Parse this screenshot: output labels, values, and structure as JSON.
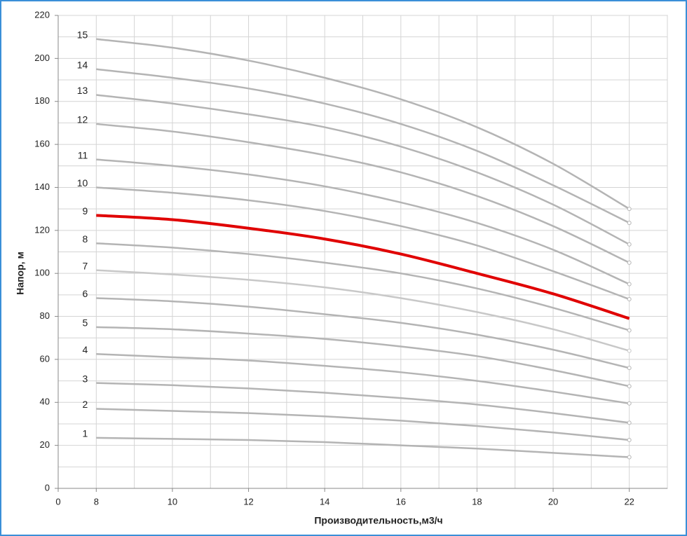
{
  "chart_data": {
    "type": "line",
    "x_label": "Производительность,м3/ч",
    "y_label": "Напор, м",
    "x": [
      8,
      10,
      12,
      14,
      16,
      18,
      20,
      22
    ],
    "xlim": [
      7,
      23
    ],
    "xticks": [
      {
        "value": 7,
        "label": "0"
      },
      8,
      10,
      12,
      14,
      16,
      18,
      20,
      22
    ],
    "ylim": [
      0,
      220
    ],
    "yticks": [
      0,
      20,
      40,
      60,
      80,
      100,
      120,
      140,
      160,
      180,
      200,
      220
    ],
    "grid": true,
    "series": [
      {
        "name": "1",
        "color": "#b4b4b4",
        "values": [
          23.5,
          23,
          22.5,
          21.5,
          20,
          18.5,
          16.5,
          14.5
        ]
      },
      {
        "name": "2",
        "color": "#b4b4b4",
        "values": [
          37,
          36,
          35,
          33.5,
          31.5,
          29,
          26,
          22.5
        ]
      },
      {
        "name": "3",
        "color": "#b4b4b4",
        "values": [
          49,
          48,
          46.5,
          44.5,
          42,
          39,
          35,
          30.5
        ]
      },
      {
        "name": "4",
        "color": "#b4b4b4",
        "values": [
          62.5,
          61,
          59.5,
          57,
          54,
          50,
          45,
          39.5
        ]
      },
      {
        "name": "5",
        "color": "#b4b4b4",
        "values": [
          75,
          74,
          72,
          69.5,
          66,
          61.5,
          55,
          47.5
        ]
      },
      {
        "name": "6",
        "color": "#b4b4b4",
        "values": [
          88.5,
          87,
          84.5,
          81,
          77,
          71.5,
          64.5,
          56
        ]
      },
      {
        "name": "7",
        "color": "#c8c8c8",
        "values": [
          101.5,
          99.5,
          97,
          93.5,
          88.5,
          82,
          74,
          64
        ]
      },
      {
        "name": "8",
        "color": "#b4b4b4",
        "values": [
          114,
          112,
          109,
          105,
          100,
          93,
          84,
          73.5
        ]
      },
      {
        "name": "9",
        "color": "#e00000",
        "values": [
          127,
          125,
          121,
          116,
          109,
          100,
          90.5,
          79
        ]
      },
      {
        "name": "10",
        "color": "#b4b4b4",
        "values": [
          140,
          137.5,
          134,
          129,
          122,
          113,
          101,
          88
        ]
      },
      {
        "name": "11",
        "color": "#b4b4b4",
        "values": [
          153,
          150,
          146,
          140.5,
          133,
          123.5,
          111,
          95
        ]
      },
      {
        "name": "12",
        "color": "#b4b4b4",
        "values": [
          169.5,
          166,
          161,
          155,
          147,
          136,
          122,
          105
        ]
      },
      {
        "name": "13",
        "color": "#b4b4b4",
        "values": [
          183,
          179,
          174,
          168,
          159,
          147,
          132,
          113.5
        ]
      },
      {
        "name": "14",
        "color": "#b4b4b4",
        "values": [
          195,
          191,
          186,
          179,
          169.5,
          157,
          141,
          123.5
        ]
      },
      {
        "name": "15",
        "color": "#b4b4b4",
        "values": [
          209,
          205,
          199,
          191,
          181,
          168,
          151,
          130
        ]
      }
    ]
  }
}
